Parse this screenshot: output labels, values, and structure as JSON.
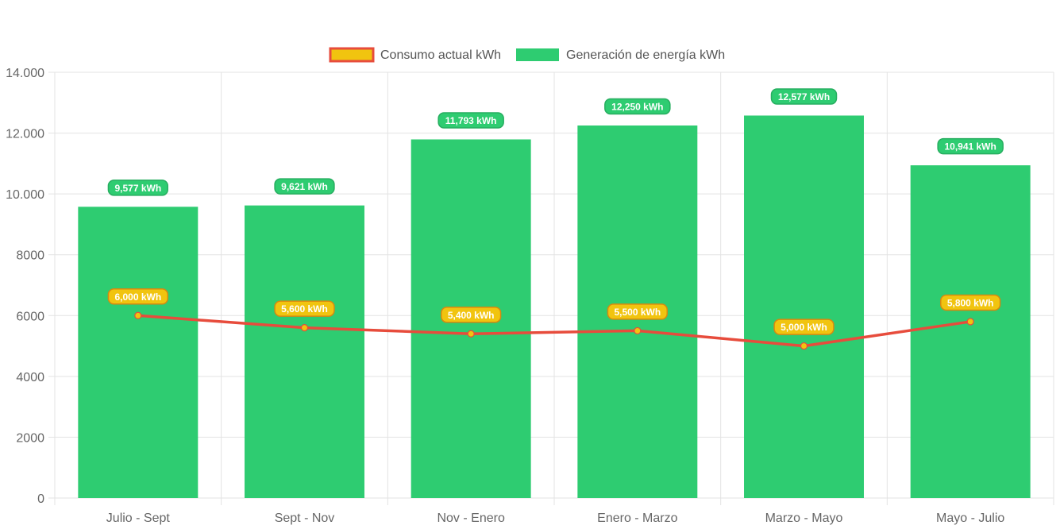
{
  "chart_data": {
    "type": "bar",
    "categories": [
      "Julio - Sept",
      "Sept - Nov",
      "Nov - Enero",
      "Enero - Marzo",
      "Marzo - Mayo",
      "Mayo - Julio"
    ],
    "series": [
      {
        "name": "Generación de energía kWh",
        "type": "bar",
        "values": [
          9577,
          9621,
          11793,
          12250,
          12577,
          10941
        ],
        "labels": [
          "9,577 kWh",
          "9,621 kWh",
          "11,793 kWh",
          "12,250 kWh",
          "12,577 kWh",
          "10,941 kWh"
        ],
        "color": "#2ecc71"
      },
      {
        "name": "Consumo actual kWh",
        "type": "line",
        "values": [
          6000,
          5600,
          5400,
          5500,
          5000,
          5800
        ],
        "labels": [
          "6,000 kWh",
          "5,600 kWh",
          "5,400 kWh",
          "5,500 kWh",
          "5,000 kWh",
          "5,800 kWh"
        ],
        "color": "#e74c3c",
        "point_color": "#f1c40f"
      }
    ],
    "ylim": [
      0,
      14000
    ],
    "yticks": [
      0,
      2000,
      4000,
      6000,
      8000,
      10000,
      12000,
      14000
    ],
    "ytick_labels": [
      "0",
      "2000",
      "4000",
      "6000",
      "8000",
      "10.000",
      "12.000",
      "14.000"
    ],
    "legend": [
      "Consumo actual kWh",
      "Generación de energía kWh"
    ],
    "legend_position": "top",
    "grid": true
  }
}
